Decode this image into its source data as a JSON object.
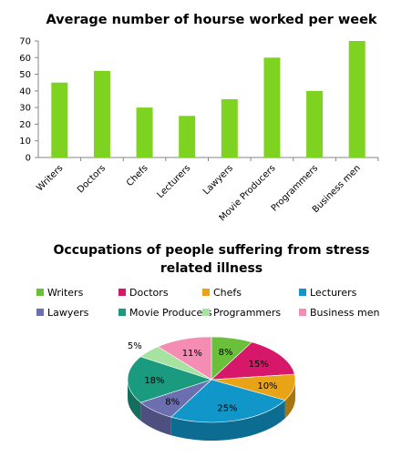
{
  "chart_data": [
    {
      "type": "bar",
      "title": "Average number of hourse worked per week",
      "categories": [
        "Writers",
        "Doctors",
        "Chefs",
        "Lecturers",
        "Lawyers",
        "Movie Producers",
        "Programmers",
        "Business men"
      ],
      "values": [
        45,
        52,
        30,
        25,
        35,
        60,
        40,
        70
      ],
      "ylim": [
        0,
        70
      ],
      "yticks": [
        "0",
        "10",
        "20",
        "30",
        "40",
        "50",
        "60",
        "70"
      ],
      "grid": false,
      "bar_color": "#7ed321"
    },
    {
      "type": "pie",
      "title": "Occupations of people suffering from stress related illness",
      "title_lines": [
        "Occupations of people suffering from stress",
        "related illness"
      ],
      "legend_position": "top",
      "slices": [
        {
          "name": "Writers",
          "value": 8,
          "label": "8%",
          "color": "#6abf3b"
        },
        {
          "name": "Doctors",
          "value": 15,
          "label": "15%",
          "color": "#d6176a"
        },
        {
          "name": "Chefs",
          "value": 10,
          "label": "10%",
          "color": "#e8a317"
        },
        {
          "name": "Lecturers",
          "value": 25,
          "label": "25%",
          "color": "#1196c9"
        },
        {
          "name": "Lawyers",
          "value": 8,
          "label": "8%",
          "color": "#6b6fb0"
        },
        {
          "name": "Movie Producers",
          "value": 18,
          "label": "18%",
          "color": "#1a9a7f"
        },
        {
          "name": "Programmers",
          "value": 5,
          "label": "5%",
          "color": "#a6e3a1"
        },
        {
          "name": "Business men",
          "value": 11,
          "label": "11%",
          "color": "#f48cb4"
        }
      ]
    }
  ]
}
